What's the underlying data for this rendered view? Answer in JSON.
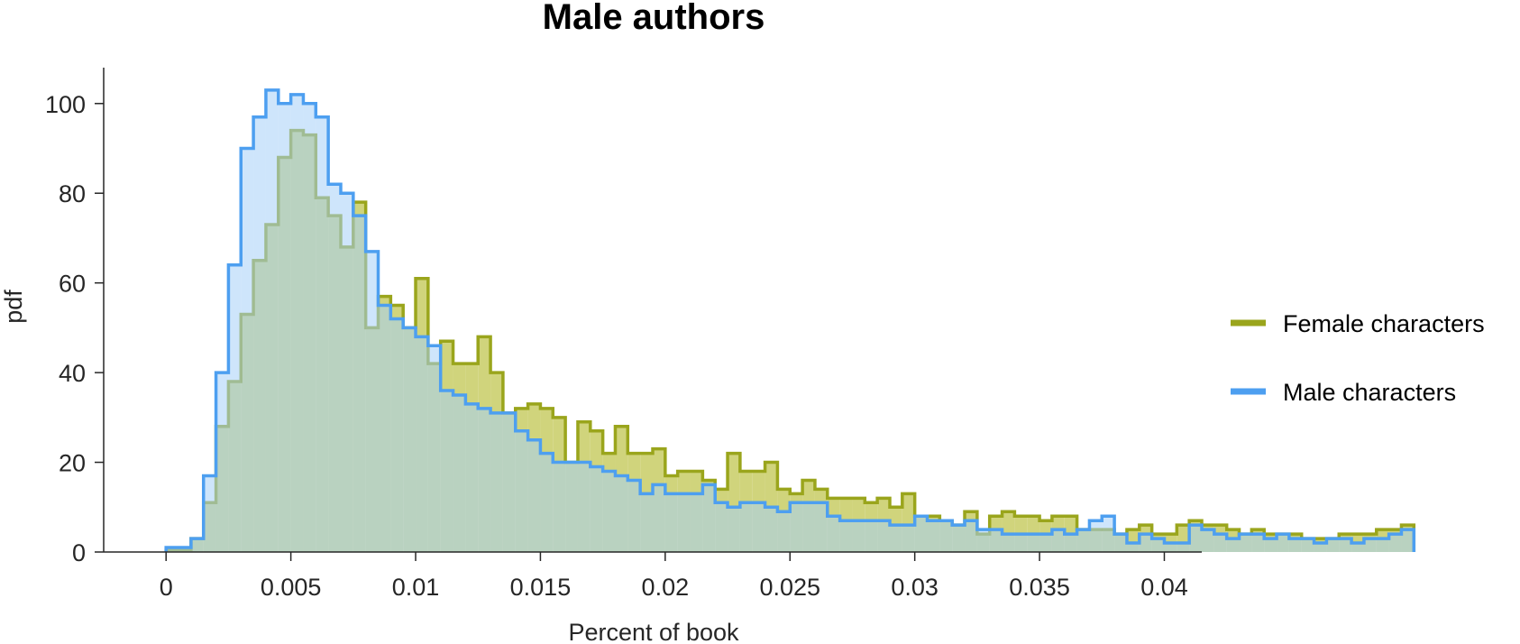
{
  "chart_data": {
    "type": "histogram",
    "title": "Male authors",
    "xlabel": "Percent of book",
    "ylabel": "pdf",
    "xlim": [
      -0.0025,
      0.0415
    ],
    "ylim": [
      0,
      108
    ],
    "x_ticks": [
      0,
      0.005,
      0.01,
      0.015,
      0.02,
      0.025,
      0.03,
      0.035,
      0.04
    ],
    "x_tick_labels": [
      "0",
      "0.005",
      "0.01",
      "0.015",
      "0.02",
      "0.025",
      "0.03",
      "0.035",
      "0.04"
    ],
    "y_ticks": [
      0,
      20,
      40,
      60,
      80,
      100
    ],
    "y_tick_labels": [
      "0",
      "20",
      "40",
      "60",
      "80",
      "100"
    ],
    "bin_start": 0,
    "bin_width": 0.0005,
    "grid": false,
    "legend_position": "right",
    "series": [
      {
        "name": "Female characters",
        "color": "#9aa51c",
        "fill": "#d0d47c",
        "values": [
          0.5,
          0.5,
          3,
          11,
          28,
          38,
          53,
          65,
          73,
          88,
          94,
          93,
          79,
          75,
          68,
          78,
          50,
          57,
          55,
          50,
          61,
          42,
          47,
          42,
          42,
          48,
          40,
          31,
          32,
          33,
          32,
          30,
          20,
          29,
          27,
          22,
          28,
          22,
          22,
          23,
          17,
          18,
          18,
          16,
          14,
          22,
          18,
          18,
          20,
          14,
          13,
          16,
          14,
          12,
          12,
          12,
          11,
          12,
          10,
          13,
          8,
          8,
          7,
          6,
          9,
          4,
          8,
          9,
          8,
          8,
          7,
          8,
          8,
          5,
          5,
          5,
          4,
          5,
          6,
          4,
          4,
          6,
          7,
          6,
          6,
          5,
          4,
          5,
          4,
          4,
          4,
          3,
          3,
          3,
          4,
          4,
          4,
          5,
          5,
          6
        ]
      },
      {
        "name": "Male characters",
        "color": "#4d9ff0",
        "fill": "#a6cff8",
        "values": [
          1,
          1,
          3,
          17,
          40,
          64,
          90,
          97,
          103,
          100,
          102,
          100,
          97,
          82,
          80,
          75,
          67,
          55,
          52,
          50,
          48,
          46,
          36,
          35,
          33,
          32,
          31,
          31,
          27,
          25,
          22,
          20,
          20,
          20,
          19,
          18,
          17,
          16,
          13,
          15,
          13,
          13,
          13,
          15,
          11,
          10,
          11,
          11,
          10,
          9,
          11,
          11,
          11,
          8,
          7,
          7,
          7,
          7,
          6,
          6,
          8,
          7,
          7,
          6,
          7,
          5,
          5,
          4,
          4,
          4,
          4,
          5,
          4,
          5,
          7,
          8,
          4,
          2,
          4,
          3,
          2,
          2,
          6,
          5,
          4,
          3,
          4,
          4,
          3,
          4,
          3,
          3,
          2,
          3,
          3,
          2,
          3,
          3,
          4,
          5
        ]
      }
    ]
  }
}
